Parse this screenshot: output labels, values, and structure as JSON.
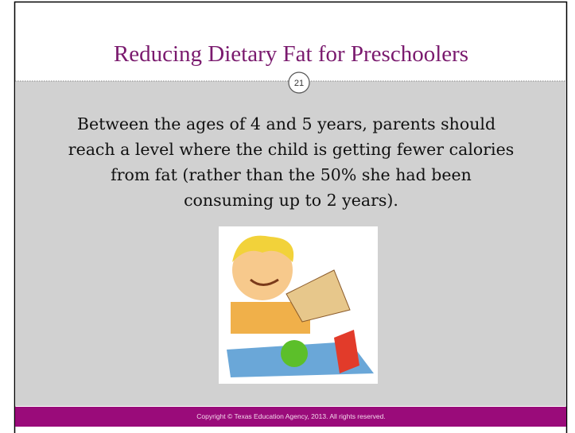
{
  "header": {
    "title": "Reducing Dietary Fat for Preschoolers",
    "slide_number": "21"
  },
  "body": {
    "lines": [
      "Between the ages of 4 and 5 years, parents should",
      "reach a level where the child is getting fewer calories",
      "from fat (rather than the 50% she had been",
      "consuming up to 2 years)."
    ]
  },
  "footer": {
    "copyright": "Copyright © Texas Education Agency, 2013. All rights reserved."
  }
}
